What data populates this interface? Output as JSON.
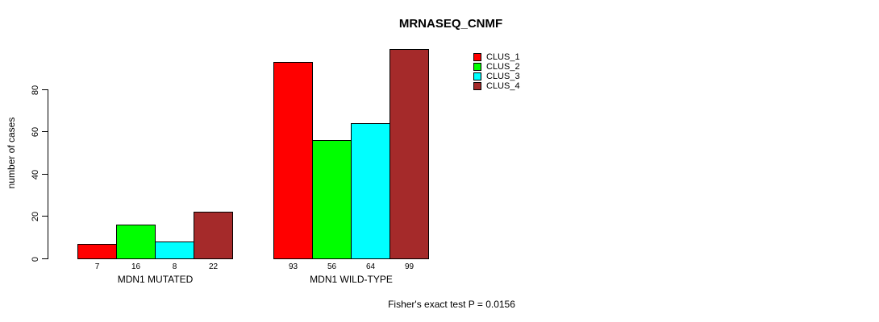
{
  "chart_data": {
    "type": "bar",
    "title": "MRNASEQ_CNMF",
    "ylabel": "number of cases",
    "xlabel": "",
    "yticks": [
      0,
      20,
      40,
      60,
      80
    ],
    "ylim": [
      0,
      99
    ],
    "grid": false,
    "legend_position": "top-right",
    "categories": [
      "MDN1 MUTATED",
      "MDN1 WILD-TYPE"
    ],
    "series": [
      {
        "name": "CLUS_1",
        "color": "#FF0000",
        "values": [
          7,
          93
        ]
      },
      {
        "name": "CLUS_2",
        "color": "#00FF00",
        "values": [
          16,
          56
        ]
      },
      {
        "name": "CLUS_3",
        "color": "#00FFFF",
        "values": [
          8,
          64
        ]
      },
      {
        "name": "CLUS_4",
        "color": "#A52A2A",
        "values": [
          22,
          99
        ]
      }
    ],
    "annotation": "Fisher's exact test P = 0.0156"
  },
  "colors": {
    "background": "#FFFFFF",
    "axis": "#000000",
    "text": "#000000"
  }
}
